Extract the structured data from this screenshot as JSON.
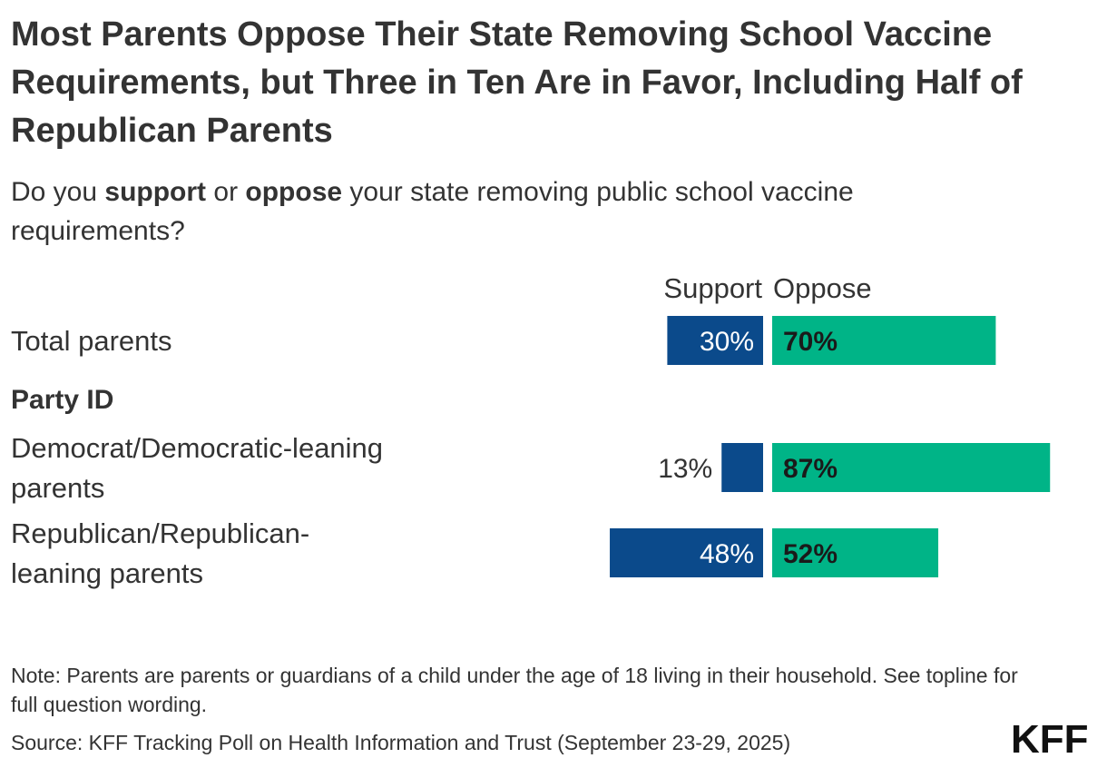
{
  "title": "Most Parents Oppose Their State Removing School Vaccine Requirements, but Three in Ten Are in Favor, Including Half of Republican Parents",
  "subtitle": {
    "part1": "Do you ",
    "bold1": "support",
    "part2": " or ",
    "bold2": "oppose",
    "part3": " your state removing public school vaccine requirements?"
  },
  "chart_data": {
    "type": "bar",
    "orientation": "diverging-horizontal",
    "series": [
      {
        "name": "Support",
        "color": "#0b4a8b",
        "values": [
          30,
          13,
          48
        ]
      },
      {
        "name": "Oppose",
        "color": "#00b487",
        "values": [
          70,
          87,
          52
        ]
      }
    ],
    "categories": [
      "Total parents",
      "Democrat/Democratic-leaning parents",
      "Republican/Republican-leaning parents"
    ],
    "group_header": "Party ID",
    "value_suffix": "%",
    "xlim": [
      0,
      100
    ]
  },
  "notes": "Note: Parents are parents or guardians of a child under the age of 18 living in their household. See topline for full question wording.",
  "source": "Source: KFF Tracking Poll on Health Information and Trust (September 23-29, 2025)",
  "logo": "KFF"
}
